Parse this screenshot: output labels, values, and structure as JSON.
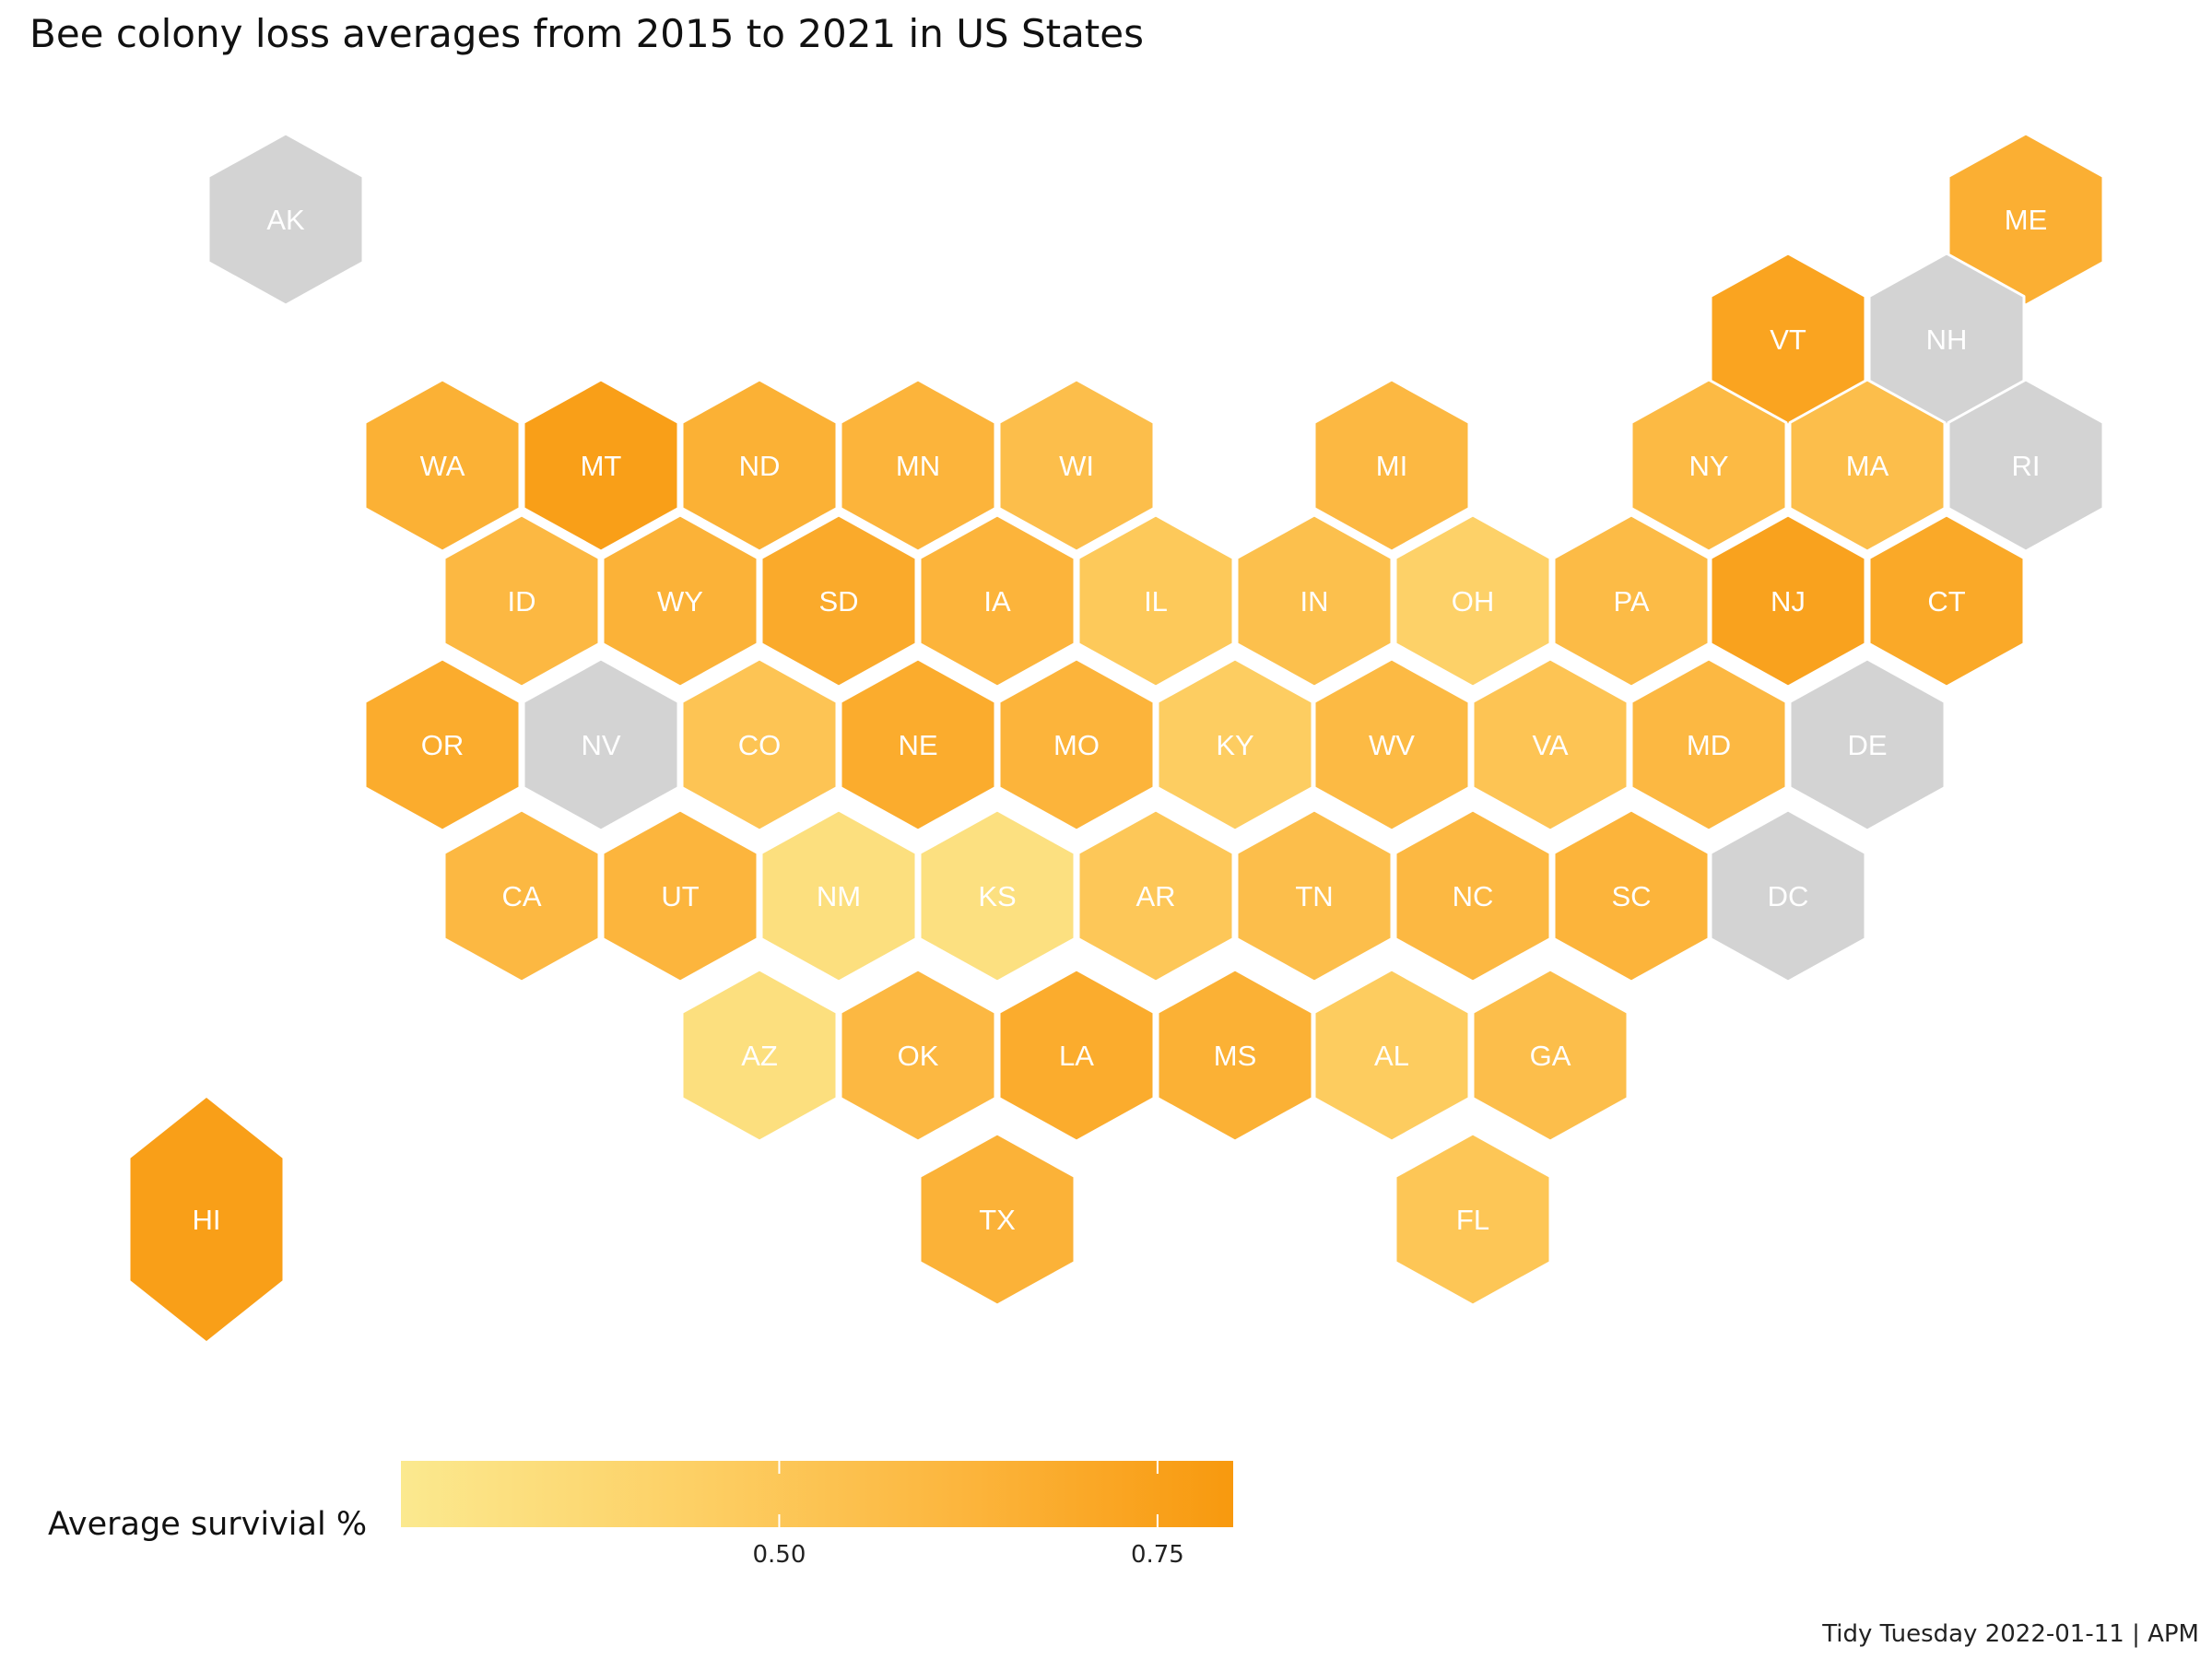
{
  "chart_data": {
    "type": "hexmap",
    "title": "Bee colony loss averages from 2015 to 2021 in US States",
    "caption": "Tidy Tuesday 2022-01-11 | APM",
    "legend": {
      "title": "Average survivial %",
      "range": [
        0.25,
        0.8
      ],
      "ticks": [
        {
          "value": 0.5,
          "label": "0.50"
        },
        {
          "value": 0.75,
          "label": "0.75"
        }
      ],
      "colors": [
        "#fbe98f",
        "#fdd167",
        "#fcb63e",
        "#f8990e"
      ],
      "na_color": "#d3d3d3",
      "placement": "bottom-left"
    },
    "states": [
      {
        "abbr": "AK",
        "value": null
      },
      {
        "abbr": "ME",
        "value": 0.66
      },
      {
        "abbr": "VT",
        "value": 0.73
      },
      {
        "abbr": "NH",
        "value": null
      },
      {
        "abbr": "WA",
        "value": 0.65
      },
      {
        "abbr": "MT",
        "value": 0.76
      },
      {
        "abbr": "ND",
        "value": 0.65
      },
      {
        "abbr": "MN",
        "value": 0.63
      },
      {
        "abbr": "WI",
        "value": 0.56
      },
      {
        "abbr": "MI",
        "value": 0.6
      },
      {
        "abbr": "NY",
        "value": 0.59
      },
      {
        "abbr": "MA",
        "value": 0.56
      },
      {
        "abbr": "RI",
        "value": null
      },
      {
        "abbr": "ID",
        "value": 0.6
      },
      {
        "abbr": "WY",
        "value": 0.64
      },
      {
        "abbr": "SD",
        "value": 0.69
      },
      {
        "abbr": "IA",
        "value": 0.63
      },
      {
        "abbr": "IL",
        "value": 0.49
      },
      {
        "abbr": "IN",
        "value": 0.55
      },
      {
        "abbr": "OH",
        "value": 0.43
      },
      {
        "abbr": "PA",
        "value": 0.58
      },
      {
        "abbr": "NJ",
        "value": 0.74
      },
      {
        "abbr": "CT",
        "value": 0.7
      },
      {
        "abbr": "OR",
        "value": 0.68
      },
      {
        "abbr": "NV",
        "value": null
      },
      {
        "abbr": "CO",
        "value": 0.52
      },
      {
        "abbr": "NE",
        "value": 0.68
      },
      {
        "abbr": "MO",
        "value": 0.63
      },
      {
        "abbr": "KY",
        "value": 0.46
      },
      {
        "abbr": "WV",
        "value": 0.59
      },
      {
        "abbr": "VA",
        "value": 0.52
      },
      {
        "abbr": "MD",
        "value": 0.6
      },
      {
        "abbr": "DE",
        "value": null
      },
      {
        "abbr": "CA",
        "value": 0.6
      },
      {
        "abbr": "UT",
        "value": 0.62
      },
      {
        "abbr": "NM",
        "value": 0.33
      },
      {
        "abbr": "KS",
        "value": 0.32
      },
      {
        "abbr": "AR",
        "value": 0.5
      },
      {
        "abbr": "TN",
        "value": 0.56
      },
      {
        "abbr": "NC",
        "value": 0.6
      },
      {
        "abbr": "SC",
        "value": 0.63
      },
      {
        "abbr": "DC",
        "value": null
      },
      {
        "abbr": "AZ",
        "value": 0.33
      },
      {
        "abbr": "OK",
        "value": 0.6
      },
      {
        "abbr": "LA",
        "value": 0.68
      },
      {
        "abbr": "MS",
        "value": 0.65
      },
      {
        "abbr": "AL",
        "value": 0.47
      },
      {
        "abbr": "GA",
        "value": 0.56
      },
      {
        "abbr": "TX",
        "value": 0.64
      },
      {
        "abbr": "FL",
        "value": 0.51
      },
      {
        "abbr": "HI",
        "value": 0.76
      }
    ]
  }
}
